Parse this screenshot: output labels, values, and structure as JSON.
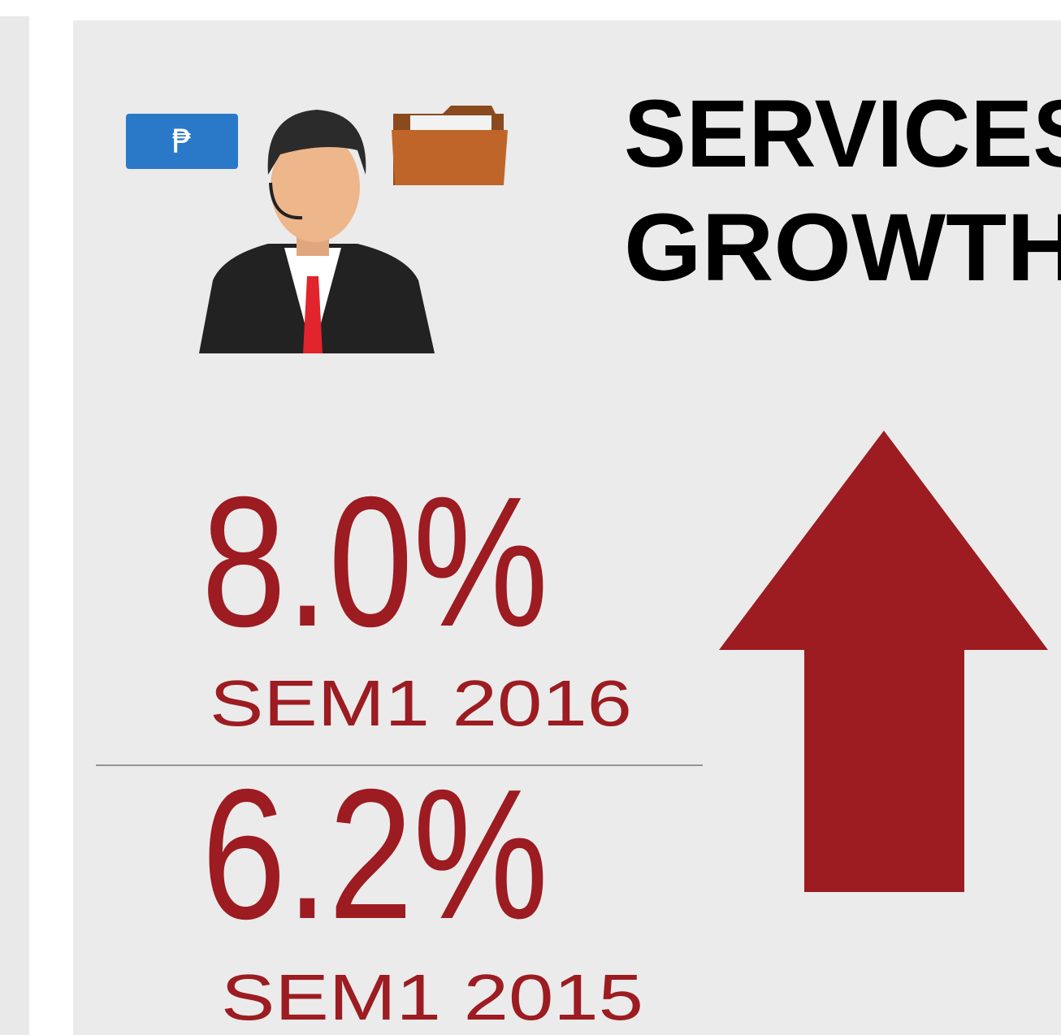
{
  "icon": {
    "currency": "₱"
  },
  "header": {
    "title_lines": [
      "SERVICES",
      "GROWTH"
    ]
  },
  "stats": [
    {
      "value": "8.0%",
      "period": "SEM1 2016"
    },
    {
      "value": "6.2%",
      "period": "SEM1 2015"
    }
  ]
}
